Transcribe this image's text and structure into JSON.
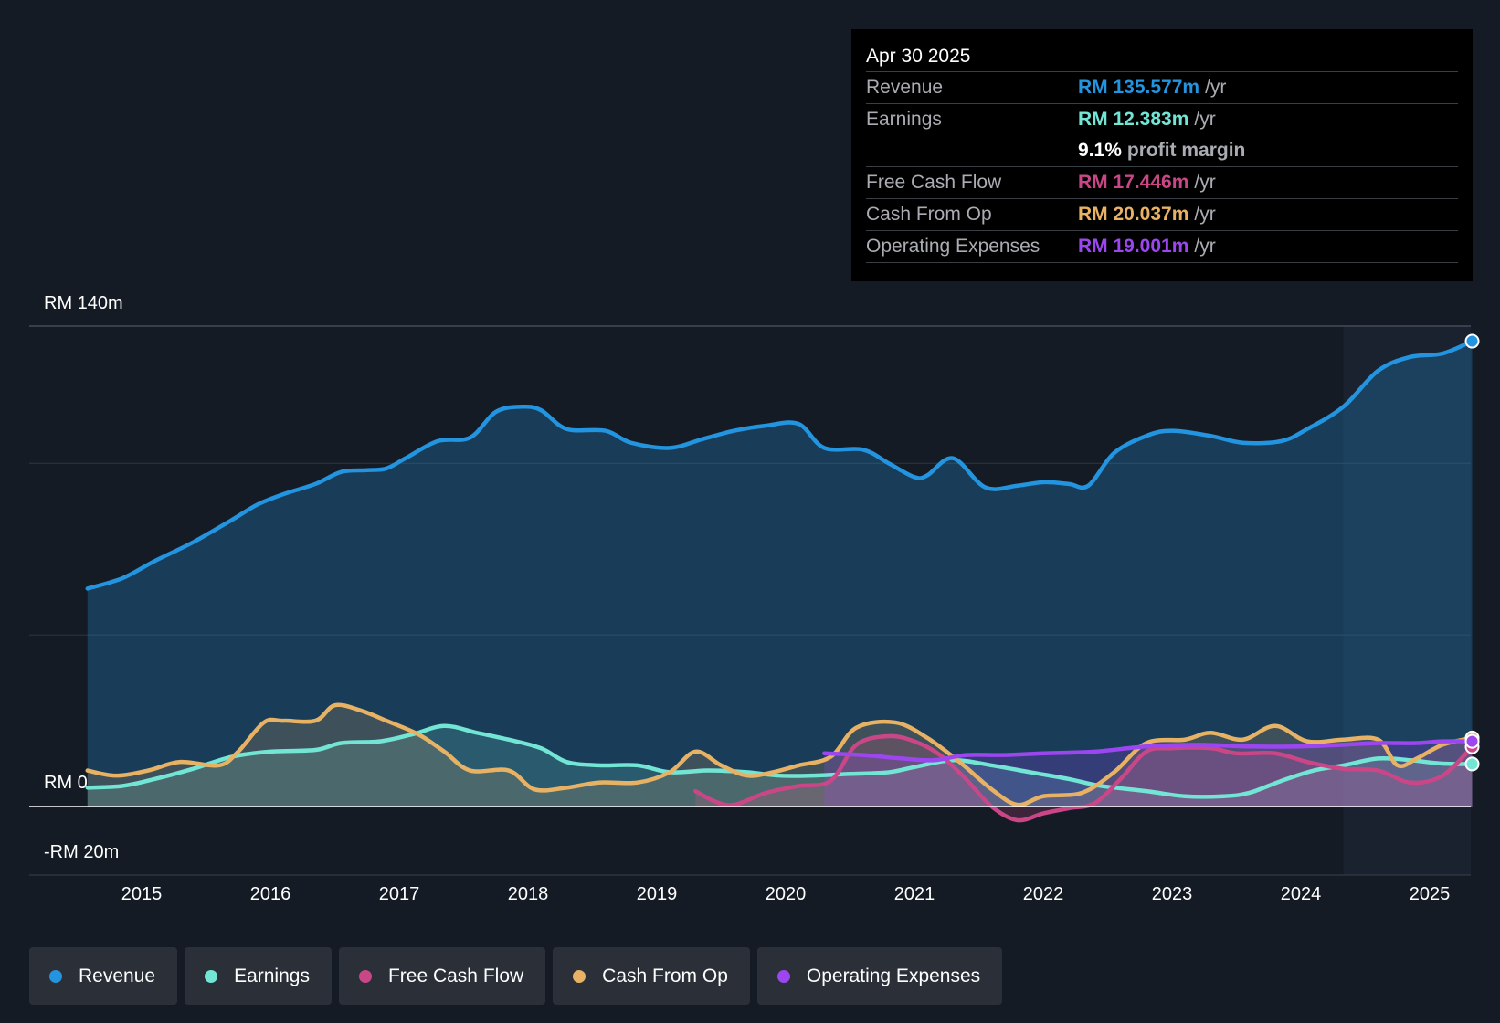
{
  "tooltip": {
    "date": "Apr 30 2025",
    "rows": [
      {
        "label": "Revenue",
        "value": "RM 135.577m",
        "unit": "/yr",
        "color": "#2394df"
      },
      {
        "label": "Earnings",
        "value": "RM 12.383m",
        "unit": "/yr",
        "color": "#72e5d5"
      },
      {
        "label": "",
        "value": "9.1%",
        "unit": "profit margin",
        "color": "#ffffff"
      },
      {
        "label": "Free Cash Flow",
        "value": "RM 17.446m",
        "unit": "/yr",
        "color": "#c94787"
      },
      {
        "label": "Cash From Op",
        "value": "RM 20.037m",
        "unit": "/yr",
        "color": "#e8b264"
      },
      {
        "label": "Operating Expenses",
        "value": "RM 19.001m",
        "unit": "/yr",
        "color": "#9c46f0"
      }
    ]
  },
  "legend": [
    {
      "label": "Revenue",
      "color": "#2394df"
    },
    {
      "label": "Earnings",
      "color": "#72e5d5"
    },
    {
      "label": "Free Cash Flow",
      "color": "#c94787"
    },
    {
      "label": "Cash From Op",
      "color": "#e8b264"
    },
    {
      "label": "Operating Expenses",
      "color": "#9c46f0"
    }
  ],
  "chart_data": {
    "type": "line",
    "title": "",
    "y_labels": {
      "top": "RM 140m",
      "zero": "RM 0",
      "bottom": "-RM 20m"
    },
    "ylim": [
      -20,
      140
    ],
    "x_ticks": [
      "2015",
      "2016",
      "2017",
      "2018",
      "2019",
      "2020",
      "2021",
      "2022",
      "2023",
      "2024",
      "2025"
    ],
    "xlim": [
      2014.58,
      2025.33
    ],
    "forecast_start": 2024.33,
    "series": [
      {
        "name": "Revenue",
        "color": "#2394df",
        "points": [
          [
            2014.58,
            63.5
          ],
          [
            2014.85,
            66.5
          ],
          [
            2015.1,
            71.5
          ],
          [
            2015.4,
            77
          ],
          [
            2015.7,
            83.5
          ],
          [
            2015.9,
            88
          ],
          [
            2016.1,
            91
          ],
          [
            2016.35,
            94
          ],
          [
            2016.55,
            97.5
          ],
          [
            2016.75,
            98
          ],
          [
            2016.9,
            98.5
          ],
          [
            2017.05,
            101.5
          ],
          [
            2017.3,
            106.5
          ],
          [
            2017.55,
            107.5
          ],
          [
            2017.75,
            115
          ],
          [
            2017.95,
            116.5
          ],
          [
            2018.1,
            115.5
          ],
          [
            2018.3,
            110
          ],
          [
            2018.6,
            109.5
          ],
          [
            2018.8,
            106
          ],
          [
            2019.1,
            104.5
          ],
          [
            2019.35,
            107
          ],
          [
            2019.6,
            109.5
          ],
          [
            2019.85,
            111
          ],
          [
            2020.1,
            111.5
          ],
          [
            2020.3,
            104.5
          ],
          [
            2020.6,
            104
          ],
          [
            2020.8,
            100
          ],
          [
            2021.0,
            96
          ],
          [
            2021.1,
            96.5
          ],
          [
            2021.3,
            101.5
          ],
          [
            2021.55,
            93
          ],
          [
            2021.8,
            93.5
          ],
          [
            2022.0,
            94.5
          ],
          [
            2022.2,
            94
          ],
          [
            2022.35,
            93.5
          ],
          [
            2022.55,
            103
          ],
          [
            2022.8,
            108
          ],
          [
            2023.0,
            109.5
          ],
          [
            2023.3,
            108
          ],
          [
            2023.55,
            106
          ],
          [
            2023.85,
            106.5
          ],
          [
            2024.05,
            110
          ],
          [
            2024.33,
            116.5
          ],
          [
            2024.6,
            127
          ],
          [
            2024.85,
            131
          ],
          [
            2025.1,
            132
          ],
          [
            2025.33,
            135.6
          ]
        ]
      },
      {
        "name": "Earnings",
        "color": "#72e5d5",
        "points": [
          [
            2014.58,
            5.5
          ],
          [
            2014.85,
            6
          ],
          [
            2015.1,
            8
          ],
          [
            2015.4,
            11
          ],
          [
            2015.7,
            14.5
          ],
          [
            2016.0,
            16
          ],
          [
            2016.35,
            16.5
          ],
          [
            2016.55,
            18.5
          ],
          [
            2016.85,
            19
          ],
          [
            2017.1,
            21
          ],
          [
            2017.35,
            23.5
          ],
          [
            2017.6,
            21.5
          ],
          [
            2017.85,
            19.5
          ],
          [
            2018.1,
            17
          ],
          [
            2018.3,
            13
          ],
          [
            2018.55,
            12
          ],
          [
            2018.85,
            12
          ],
          [
            2019.1,
            10
          ],
          [
            2019.4,
            10.5
          ],
          [
            2019.7,
            10
          ],
          [
            2019.95,
            9
          ],
          [
            2020.2,
            9
          ],
          [
            2020.5,
            9.5
          ],
          [
            2020.8,
            10
          ],
          [
            2021.0,
            11.5
          ],
          [
            2021.3,
            13.5
          ],
          [
            2021.6,
            12
          ],
          [
            2021.9,
            10
          ],
          [
            2022.2,
            8
          ],
          [
            2022.45,
            6
          ],
          [
            2022.8,
            4.5
          ],
          [
            2023.1,
            3
          ],
          [
            2023.4,
            3
          ],
          [
            2023.6,
            4
          ],
          [
            2023.85,
            7.5
          ],
          [
            2024.1,
            10.5
          ],
          [
            2024.33,
            12
          ],
          [
            2024.6,
            14
          ],
          [
            2024.85,
            13.5
          ],
          [
            2025.1,
            12.5
          ],
          [
            2025.33,
            12.4
          ]
        ]
      },
      {
        "name": "Free Cash Flow",
        "color": "#c94787",
        "points": [
          [
            2019.3,
            4.5
          ],
          [
            2019.45,
            1.5
          ],
          [
            2019.6,
            0.5
          ],
          [
            2019.85,
            4
          ],
          [
            2020.1,
            6
          ],
          [
            2020.35,
            7.5
          ],
          [
            2020.55,
            18
          ],
          [
            2020.8,
            20.5
          ],
          [
            2021.0,
            19
          ],
          [
            2021.2,
            15
          ],
          [
            2021.4,
            8
          ],
          [
            2021.6,
            0
          ],
          [
            2021.8,
            -4
          ],
          [
            2022.0,
            -2
          ],
          [
            2022.2,
            -0.5
          ],
          [
            2022.4,
            1
          ],
          [
            2022.6,
            8
          ],
          [
            2022.8,
            16
          ],
          [
            2023.0,
            17
          ],
          [
            2023.3,
            17
          ],
          [
            2023.5,
            15.5
          ],
          [
            2023.8,
            15.5
          ],
          [
            2024.05,
            13
          ],
          [
            2024.33,
            11
          ],
          [
            2024.6,
            10.5
          ],
          [
            2024.85,
            7
          ],
          [
            2025.1,
            9
          ],
          [
            2025.33,
            17.4
          ]
        ]
      },
      {
        "name": "Cash From Op",
        "color": "#e8b264",
        "points": [
          [
            2014.58,
            10.5
          ],
          [
            2014.8,
            9
          ],
          [
            2015.05,
            10.5
          ],
          [
            2015.3,
            13
          ],
          [
            2015.6,
            12
          ],
          [
            2015.75,
            16
          ],
          [
            2015.95,
            24.5
          ],
          [
            2016.1,
            25
          ],
          [
            2016.35,
            25
          ],
          [
            2016.5,
            29.5
          ],
          [
            2016.7,
            28
          ],
          [
            2016.9,
            25
          ],
          [
            2017.15,
            21
          ],
          [
            2017.35,
            16
          ],
          [
            2017.55,
            10.5
          ],
          [
            2017.85,
            10.5
          ],
          [
            2018.05,
            5
          ],
          [
            2018.3,
            5.5
          ],
          [
            2018.55,
            7
          ],
          [
            2018.85,
            7
          ],
          [
            2019.1,
            10
          ],
          [
            2019.3,
            16
          ],
          [
            2019.5,
            12
          ],
          [
            2019.7,
            9
          ],
          [
            2019.9,
            10
          ],
          [
            2020.1,
            12
          ],
          [
            2020.35,
            14.5
          ],
          [
            2020.55,
            23
          ],
          [
            2020.85,
            24.5
          ],
          [
            2021.1,
            20
          ],
          [
            2021.35,
            13
          ],
          [
            2021.6,
            5
          ],
          [
            2021.8,
            0.5
          ],
          [
            2022.0,
            3
          ],
          [
            2022.3,
            4
          ],
          [
            2022.55,
            10
          ],
          [
            2022.8,
            18.5
          ],
          [
            2023.1,
            19.5
          ],
          [
            2023.3,
            21.5
          ],
          [
            2023.55,
            19.5
          ],
          [
            2023.8,
            23.5
          ],
          [
            2024.05,
            19
          ],
          [
            2024.33,
            19.5
          ],
          [
            2024.6,
            19.5
          ],
          [
            2024.75,
            12
          ],
          [
            2024.9,
            14
          ],
          [
            2025.1,
            18
          ],
          [
            2025.33,
            20
          ]
        ]
      },
      {
        "name": "Operating Expenses",
        "color": "#9c46f0",
        "points": [
          [
            2020.3,
            15.5
          ],
          [
            2020.6,
            15
          ],
          [
            2020.9,
            14
          ],
          [
            2021.15,
            13.5
          ],
          [
            2021.4,
            15
          ],
          [
            2021.7,
            15
          ],
          [
            2022.0,
            15.5
          ],
          [
            2022.4,
            16
          ],
          [
            2022.8,
            17.5
          ],
          [
            2023.2,
            18
          ],
          [
            2023.6,
            17.5
          ],
          [
            2024.0,
            17.5
          ],
          [
            2024.33,
            18
          ],
          [
            2024.6,
            18.5
          ],
          [
            2024.9,
            18.5
          ],
          [
            2025.1,
            19
          ],
          [
            2025.33,
            19
          ]
        ]
      }
    ]
  }
}
